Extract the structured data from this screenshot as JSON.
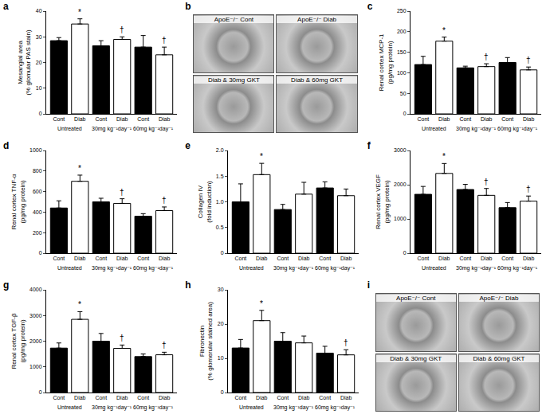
{
  "chart_data": [
    {
      "panel": "a",
      "type": "bar",
      "y_label": "Mesangial area\n(% glomular PAS stain)",
      "categories": [
        "Cont",
        "Diab",
        "Cont",
        "Diab",
        "Cont",
        "Diab"
      ],
      "group_labels": [
        "Untreated",
        "30mg kg⁻¹day⁻¹",
        "60mg kg⁻¹day⁻¹"
      ],
      "values": [
        28.5,
        35,
        26.5,
        29,
        26,
        23
      ],
      "errors": [
        1.2,
        2,
        2,
        1,
        4.5,
        3
      ],
      "significance": [
        null,
        "*",
        null,
        "†",
        null,
        "†"
      ],
      "colors": [
        "#000000",
        "#ffffff",
        "#000000",
        "#ffffff",
        "#000000",
        "#ffffff"
      ],
      "ylim": [
        0,
        40
      ],
      "yticks": [
        0,
        10,
        20,
        30,
        40
      ]
    },
    {
      "panel": "c",
      "type": "bar",
      "y_label": "Renal cortex MCP-1\n(pg/mg protein)",
      "categories": [
        "Cont",
        "Diab",
        "Cont",
        "Diab",
        "Cont",
        "Diab"
      ],
      "group_labels": [
        "Untreated",
        "30mg kg⁻¹day⁻¹",
        "60mg kg⁻¹day⁻¹"
      ],
      "values": [
        120,
        177,
        112,
        115,
        125,
        107
      ],
      "errors": [
        20,
        10,
        4,
        7,
        12,
        7
      ],
      "significance": [
        null,
        "*",
        null,
        "†",
        null,
        "†"
      ],
      "colors": [
        "#000000",
        "#ffffff",
        "#000000",
        "#ffffff",
        "#000000",
        "#ffffff"
      ],
      "ylim": [
        0,
        250
      ],
      "yticks": [
        0,
        50,
        100,
        150,
        200,
        250
      ]
    },
    {
      "panel": "d",
      "type": "bar",
      "y_label": "Renal cortex TNF-α\n(pg/mg protein)",
      "categories": [
        "Cont",
        "Diab",
        "Cont",
        "Diab",
        "Cont",
        "Diab"
      ],
      "group_labels": [
        "Untreated",
        "30mg kg⁻¹day⁻¹",
        "60mg kg⁻¹day⁻¹"
      ],
      "values": [
        440,
        700,
        500,
        485,
        360,
        415
      ],
      "errors": [
        70,
        60,
        35,
        45,
        25,
        35
      ],
      "significance": [
        null,
        "*",
        null,
        "†",
        null,
        "†"
      ],
      "colors": [
        "#000000",
        "#ffffff",
        "#000000",
        "#ffffff",
        "#000000",
        "#ffffff"
      ],
      "ylim": [
        0,
        1000
      ],
      "yticks": [
        0,
        200,
        400,
        600,
        800,
        1000
      ]
    },
    {
      "panel": "e",
      "type": "bar",
      "y_label": "Collagen IV\n(fold induction)",
      "categories": [
        "Cont",
        "Diab",
        "Cont",
        "Diab",
        "Cont",
        "Diab"
      ],
      "group_labels": [
        "Untreated",
        "30mg kg⁻¹day⁻¹",
        "60mg kg⁻¹day⁻¹"
      ],
      "values": [
        1.0,
        1.53,
        0.85,
        1.15,
        1.27,
        1.12
      ],
      "errors": [
        0.35,
        0.22,
        0.1,
        0.23,
        0.12,
        0.13
      ],
      "significance": [
        null,
        "*",
        null,
        null,
        null,
        null
      ],
      "colors": [
        "#000000",
        "#ffffff",
        "#000000",
        "#ffffff",
        "#000000",
        "#ffffff"
      ],
      "ylim": [
        0,
        2.0
      ],
      "yticks": [
        0,
        0.5,
        {
          "value": 1,
          "label": "1.0"
        },
        1.5,
        {
          "value": 2,
          "label": "2.0"
        }
      ]
    },
    {
      "panel": "f",
      "type": "bar",
      "y_label": "Renal cortex VEGF\n(pg/mg protein)",
      "categories": [
        "Cont",
        "Diab",
        "Cont",
        "Diab",
        "Cont",
        "Diab"
      ],
      "group_labels": [
        "Untreated",
        "30mg kg⁻¹day⁻¹",
        "60mg kg⁻¹day⁻¹"
      ],
      "values": [
        1720,
        2330,
        1860,
        1690,
        1330,
        1520
      ],
      "errors": [
        230,
        290,
        150,
        200,
        150,
        150
      ],
      "significance": [
        null,
        "*",
        null,
        "†",
        null,
        "†"
      ],
      "colors": [
        "#000000",
        "#ffffff",
        "#000000",
        "#ffffff",
        "#000000",
        "#ffffff"
      ],
      "ylim": [
        0,
        3000
      ],
      "yticks": [
        0,
        1000,
        2000,
        3000
      ]
    },
    {
      "panel": "g",
      "type": "bar",
      "y_label": "Renal cortex TGF-β\n(pg/mg protein)",
      "categories": [
        "Cont",
        "Diab",
        "Cont",
        "Diab",
        "Cont",
        "Diab"
      ],
      "group_labels": [
        "Untreated",
        "30mg kg⁻¹day⁻¹",
        "60mg kg⁻¹day⁻¹"
      ],
      "values": [
        1730,
        2850,
        2000,
        1720,
        1400,
        1470
      ],
      "errors": [
        200,
        300,
        300,
        130,
        100,
        100
      ],
      "significance": [
        null,
        "*",
        null,
        "†",
        null,
        "†"
      ],
      "colors": [
        "#000000",
        "#ffffff",
        "#000000",
        "#ffffff",
        "#000000",
        "#ffffff"
      ],
      "ylim": [
        0,
        4000
      ],
      "yticks": [
        0,
        1000,
        2000,
        3000,
        4000
      ]
    },
    {
      "panel": "h",
      "type": "bar",
      "y_label": "Fibronectin\n(% glomerular stained area)",
      "categories": [
        "Cont",
        "Diab",
        "Cont",
        "Diab",
        "Cont",
        "Diab"
      ],
      "group_labels": [
        "Untreated",
        "30mg kg⁻¹day⁻¹",
        "60mg kg⁻¹day⁻¹"
      ],
      "values": [
        13,
        21,
        15,
        14.5,
        11.5,
        11
      ],
      "errors": [
        2.5,
        3,
        2.5,
        2,
        2,
        1.5
      ],
      "significance": [
        null,
        "*",
        null,
        null,
        null,
        "†"
      ],
      "colors": [
        "#000000",
        "#ffffff",
        "#000000",
        "#ffffff",
        "#000000",
        "#ffffff"
      ],
      "ylim": [
        0,
        30
      ],
      "yticks": [
        0,
        10,
        20,
        30
      ]
    }
  ],
  "images": [
    {
      "panel": "b",
      "captions": [
        "ApoE⁻/⁻ Cont",
        "ApoE⁻/⁻ Diab",
        "Diab & 30mg GKT",
        "Diab & 60mg GKT"
      ]
    },
    {
      "panel": "i",
      "captions": [
        "ApoE⁻/⁻ Cont",
        "ApoE⁻/⁻ Diab",
        "Diab & 30mg GKT",
        "Diab & 60mg GKT"
      ]
    }
  ]
}
